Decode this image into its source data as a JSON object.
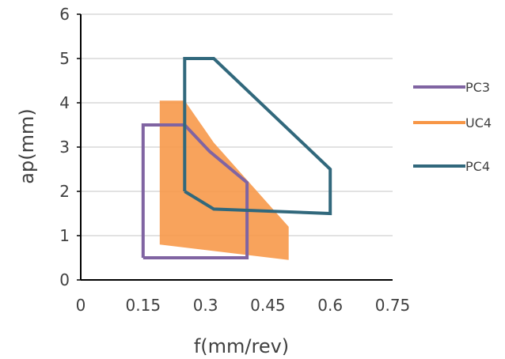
{
  "chart_data": {
    "type": "area",
    "title": "",
    "xlabel": "f(mm/rev)",
    "ylabel": "ap(mm)",
    "xlim": [
      0,
      0.75
    ],
    "ylim": [
      0,
      6
    ],
    "x_ticks": [
      "0",
      "0.15",
      "0.3",
      "0.45",
      "0.6",
      "0.75"
    ],
    "y_ticks": [
      "0",
      "1",
      "2",
      "3",
      "4",
      "5",
      "6"
    ],
    "x_tick_values": [
      0,
      0.15,
      0.3,
      0.45,
      0.6,
      0.75
    ],
    "y_tick_values": [
      0,
      1,
      2,
      3,
      4,
      5,
      6
    ],
    "grid": "horizontal",
    "legend_position": "right",
    "series": [
      {
        "name": "PC3",
        "style": "outline",
        "color": "#8064A2",
        "points": [
          [
            0.15,
            0.5
          ],
          [
            0.15,
            3.5
          ],
          [
            0.25,
            3.5
          ],
          [
            0.31,
            2.9
          ],
          [
            0.4,
            2.2
          ],
          [
            0.4,
            0.5
          ],
          [
            0.15,
            0.5
          ]
        ]
      },
      {
        "name": "UC4",
        "style": "filled",
        "color": "#F79646",
        "points": [
          [
            0.19,
            0.8
          ],
          [
            0.19,
            4.05
          ],
          [
            0.25,
            4.05
          ],
          [
            0.32,
            3.1
          ],
          [
            0.5,
            1.2
          ],
          [
            0.5,
            0.45
          ]
        ]
      },
      {
        "name": "PC4",
        "style": "outline",
        "color": "#31687C",
        "points": [
          [
            0.25,
            2.0
          ],
          [
            0.25,
            5.0
          ],
          [
            0.32,
            5.0
          ],
          [
            0.6,
            2.5
          ],
          [
            0.6,
            1.5
          ],
          [
            0.32,
            1.6
          ],
          [
            0.25,
            2.0
          ]
        ]
      }
    ]
  },
  "colors": {
    "text": "#404040",
    "grid": "#D9D9D9",
    "axis": "#000000"
  }
}
